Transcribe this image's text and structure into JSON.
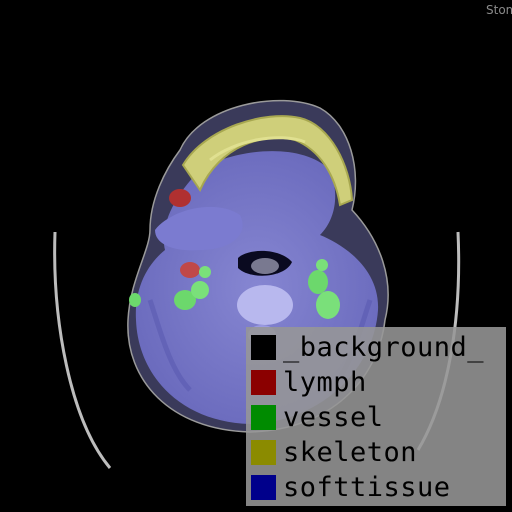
{
  "corner_text": "Stom",
  "legend": {
    "items": [
      {
        "label": "_background_",
        "color": "#000000"
      },
      {
        "label": "lymph",
        "color": "#8b0000"
      },
      {
        "label": "vessel",
        "color": "#008b00"
      },
      {
        "label": "skeleton",
        "color": "#8b8b00"
      },
      {
        "label": "softtissue",
        "color": "#00008b"
      }
    ]
  }
}
